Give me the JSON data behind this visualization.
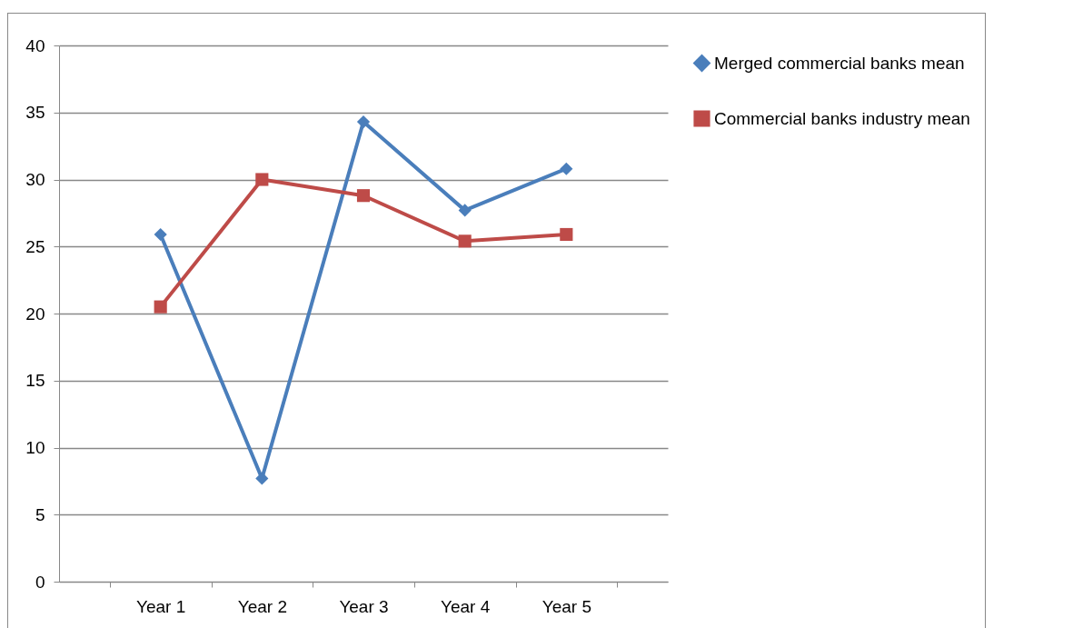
{
  "chart_data": {
    "type": "line",
    "categories": [
      "Year 1",
      "Year 2",
      "Year 3",
      "Year 4",
      "Year 5"
    ],
    "series": [
      {
        "name": "Merged commercial banks mean",
        "color": "#4a7ebb",
        "values": [
          25.9,
          7.7,
          34.3,
          27.7,
          30.8
        ],
        "marker": "diamond"
      },
      {
        "name": "Commercial banks industry mean",
        "color": "#be4b48",
        "values": [
          20.5,
          30.0,
          28.8,
          25.4,
          25.9
        ],
        "marker": "square"
      }
    ],
    "ylim": [
      0,
      40
    ],
    "yticks": [
      0,
      5,
      10,
      15,
      20,
      25,
      30,
      35,
      40
    ],
    "grid": "y",
    "legend": "right",
    "line_style": "solid"
  }
}
